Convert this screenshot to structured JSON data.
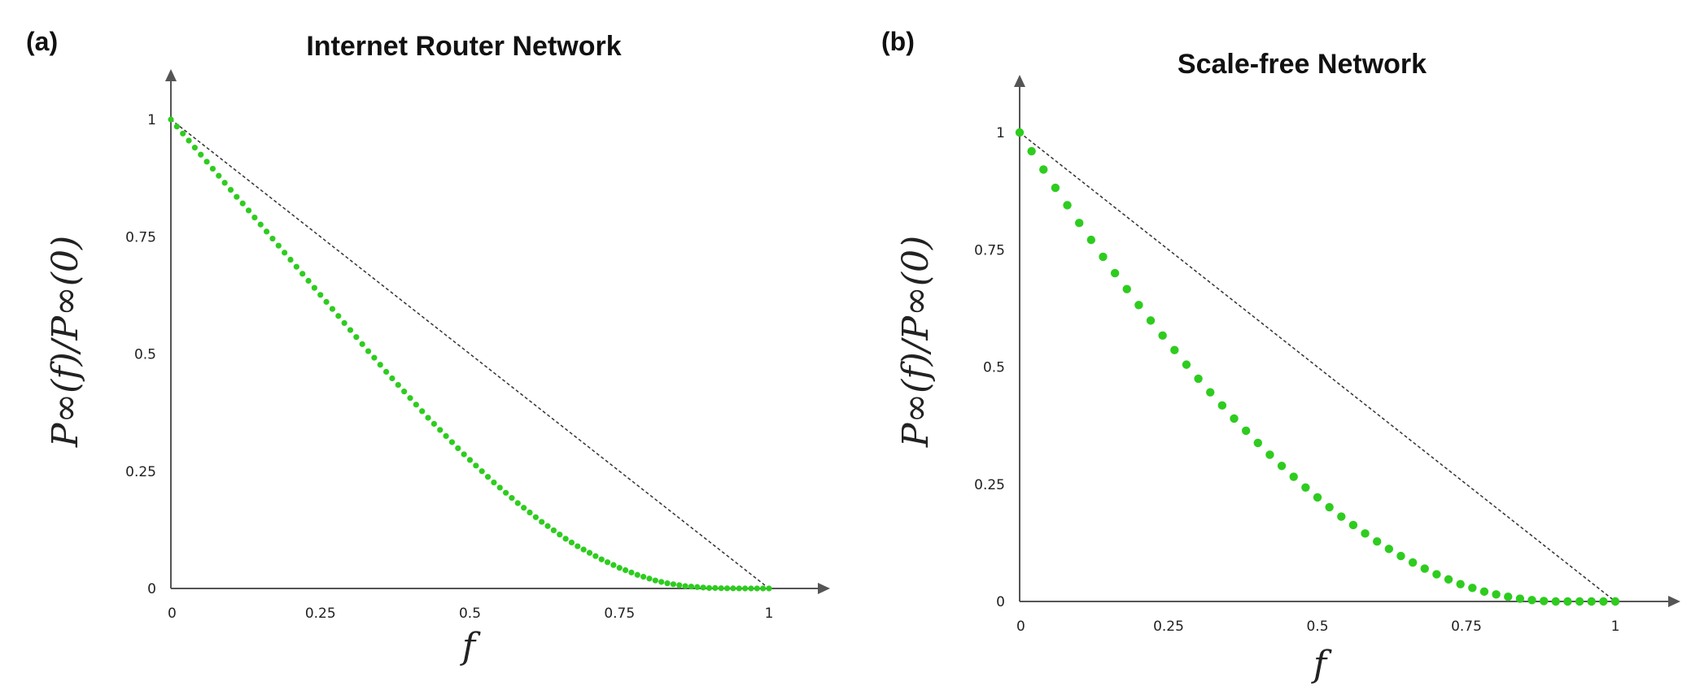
{
  "chart_data": [
    {
      "type": "scatter",
      "panel_label": "(a)",
      "title": "Internet Router Network",
      "xlabel": "f",
      "ylabel": "P∞(f)/P∞(0)",
      "xlim": [
        0,
        1.1
      ],
      "ylim": [
        0,
        1.1
      ],
      "x_ticks": [
        0,
        0.25,
        0.5,
        0.75,
        1
      ],
      "y_ticks": [
        0,
        0.25,
        0.5,
        0.75,
        1
      ],
      "x_tick_labels": [
        "0",
        "0.25",
        "0.5",
        "0.75",
        "1"
      ],
      "y_tick_labels": [
        "0",
        "0.25",
        "0.5",
        "0.75",
        "1"
      ],
      "reference_line": {
        "x": [
          0,
          1
        ],
        "y": [
          1,
          0
        ]
      },
      "series": [
        {
          "color": "#2ecc1f",
          "x": [
            0.0,
            0.01,
            0.02,
            0.03,
            0.04,
            0.05,
            0.06,
            0.07,
            0.08,
            0.09,
            0.1,
            0.11,
            0.12,
            0.13,
            0.14,
            0.15,
            0.16,
            0.17,
            0.18,
            0.19,
            0.2,
            0.21,
            0.22,
            0.23,
            0.24,
            0.25,
            0.26,
            0.27,
            0.28,
            0.29,
            0.3,
            0.31,
            0.32,
            0.33,
            0.34,
            0.35,
            0.36,
            0.37,
            0.38,
            0.39,
            0.4,
            0.41,
            0.42,
            0.43,
            0.44,
            0.45,
            0.46,
            0.47,
            0.48,
            0.49,
            0.5,
            0.51,
            0.52,
            0.53,
            0.54,
            0.55,
            0.56,
            0.57,
            0.58,
            0.59,
            0.6,
            0.61,
            0.62,
            0.63,
            0.64,
            0.65,
            0.66,
            0.67,
            0.68,
            0.69,
            0.7,
            0.71,
            0.72,
            0.73,
            0.74,
            0.75,
            0.76,
            0.77,
            0.78,
            0.79,
            0.8,
            0.81,
            0.82,
            0.83,
            0.84,
            0.85,
            0.86,
            0.87,
            0.88,
            0.89,
            0.9,
            0.91,
            0.92,
            0.93,
            0.94,
            0.95,
            0.96,
            0.97,
            0.98,
            0.99,
            1.0
          ],
          "y": [
            1.0,
            0.985,
            0.97,
            0.955,
            0.94,
            0.925,
            0.91,
            0.895,
            0.88,
            0.865,
            0.85,
            0.835,
            0.821,
            0.806,
            0.791,
            0.776,
            0.761,
            0.746,
            0.731,
            0.716,
            0.701,
            0.686,
            0.671,
            0.656,
            0.641,
            0.626,
            0.611,
            0.596,
            0.581,
            0.566,
            0.551,
            0.536,
            0.521,
            0.506,
            0.492,
            0.477,
            0.462,
            0.448,
            0.434,
            0.42,
            0.406,
            0.392,
            0.378,
            0.364,
            0.351,
            0.338,
            0.325,
            0.312,
            0.299,
            0.286,
            0.274,
            0.262,
            0.25,
            0.238,
            0.226,
            0.215,
            0.204,
            0.193,
            0.182,
            0.172,
            0.162,
            0.152,
            0.142,
            0.133,
            0.124,
            0.115,
            0.106,
            0.098,
            0.09,
            0.083,
            0.076,
            0.069,
            0.062,
            0.056,
            0.05,
            0.044,
            0.039,
            0.034,
            0.029,
            0.025,
            0.021,
            0.017,
            0.014,
            0.011,
            0.009,
            0.007,
            0.005,
            0.004,
            0.003,
            0.002,
            0.001,
            0.001,
            0.0005,
            0.0003,
            0.0002,
            0.0001,
            0.0,
            0.0,
            0.0,
            0.0,
            0.0
          ]
        }
      ]
    },
    {
      "type": "scatter",
      "panel_label": "(b)",
      "title": "Scale-free Network",
      "xlabel": "f",
      "ylabel": "P∞(f)/P∞(0)",
      "xlim": [
        0,
        1.1
      ],
      "ylim": [
        0,
        1.1
      ],
      "x_ticks": [
        0,
        0.25,
        0.5,
        0.75,
        1
      ],
      "y_ticks": [
        0,
        0.25,
        0.5,
        0.75,
        1
      ],
      "x_tick_labels": [
        "0",
        "0.25",
        "0.5",
        "0.75",
        "1"
      ],
      "y_tick_labels": [
        "0",
        "0.25",
        "0.5",
        "0.75",
        "1"
      ],
      "reference_line": {
        "x": [
          0,
          1
        ],
        "y": [
          1,
          0
        ]
      },
      "series": [
        {
          "color": "#2ecc1f",
          "x": [
            0.0,
            0.02,
            0.04,
            0.06,
            0.08,
            0.1,
            0.12,
            0.14,
            0.16,
            0.18,
            0.2,
            0.22,
            0.24,
            0.26,
            0.28,
            0.3,
            0.32,
            0.34,
            0.36,
            0.38,
            0.4,
            0.42,
            0.44,
            0.46,
            0.48,
            0.5,
            0.52,
            0.54,
            0.56,
            0.58,
            0.6,
            0.62,
            0.64,
            0.66,
            0.68,
            0.7,
            0.72,
            0.74,
            0.76,
            0.78,
            0.8,
            0.82,
            0.84,
            0.86,
            0.88,
            0.9,
            0.92,
            0.94,
            0.96,
            0.98,
            1.0
          ],
          "y": [
            1.0,
            0.96,
            0.921,
            0.882,
            0.845,
            0.807,
            0.771,
            0.735,
            0.7,
            0.666,
            0.632,
            0.599,
            0.567,
            0.536,
            0.505,
            0.475,
            0.446,
            0.418,
            0.39,
            0.364,
            0.338,
            0.313,
            0.289,
            0.266,
            0.243,
            0.222,
            0.201,
            0.181,
            0.163,
            0.145,
            0.128,
            0.112,
            0.097,
            0.083,
            0.07,
            0.058,
            0.047,
            0.037,
            0.029,
            0.021,
            0.015,
            0.01,
            0.006,
            0.003,
            0.001,
            0.0,
            0.0,
            0.0,
            0.0,
            0.0,
            0.0
          ]
        }
      ]
    }
  ]
}
